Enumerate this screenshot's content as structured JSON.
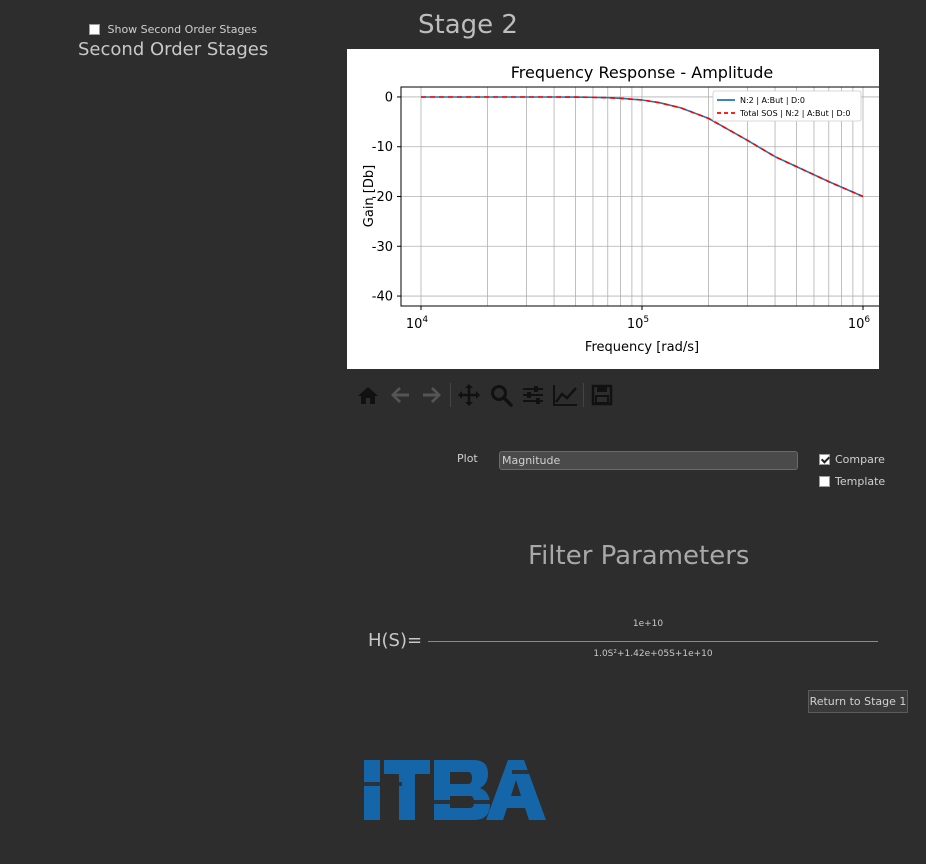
{
  "sidebar": {
    "show_sos_label": "Show Second Order Stages",
    "show_sos_checked": false,
    "title": "Second Order Stages"
  },
  "stage_title": "Stage 2",
  "toolbar": {
    "icons": [
      "home-icon",
      "back-arrow-icon",
      "forward-arrow-icon",
      "pan-icon",
      "zoom-icon",
      "configure-subplots-icon",
      "edit-axis-icon",
      "save-icon"
    ]
  },
  "controls": {
    "plot_label": "Plot",
    "plot_value": "Magnitude",
    "compare_label": "Compare",
    "compare_checked": true,
    "template_label": "Template",
    "template_checked": false
  },
  "params": {
    "title": "Filter Parameters",
    "hs_label": "H(S)=",
    "numerator": "1e+10",
    "denominator": "1.0S²+1.42e+05S+1e+10"
  },
  "return_button": "Return to Stage 1",
  "logo_text": "ITBA",
  "colors": {
    "background": "#2d2d2d",
    "series1": "#1f77b4",
    "series2": "#ff0000",
    "logo": "#1466a8"
  },
  "chart_data": {
    "type": "line",
    "title": "Frequency Response - Amplitude",
    "xlabel": "Frequency [rad/s]",
    "ylabel": "Gain [Db]",
    "xscale": "log",
    "xlim": [
      10000,
      1000000
    ],
    "ylim": [
      -42,
      2
    ],
    "xticks": [
      10000,
      100000,
      1000000
    ],
    "xtick_labels": [
      [
        "10",
        "4"
      ],
      [
        "10",
        "5"
      ],
      [
        "10",
        "6"
      ]
    ],
    "yticks": [
      0,
      -10,
      -20,
      -30,
      -40
    ],
    "grid": true,
    "legend_position": "upper right",
    "series": [
      {
        "name": "N:2 | A:But | D:0",
        "color": "#1f77b4",
        "style": "solid",
        "x": [
          10000,
          20000,
          30000,
          40000,
          50000,
          60000,
          70000,
          80000,
          100000,
          120000,
          150000,
          200000,
          300000,
          400000,
          500000,
          700000,
          1000000
        ],
        "y": [
          0,
          0,
          -0.003,
          -0.011,
          -0.03,
          -0.07,
          -0.14,
          -0.27,
          -0.62,
          -1.16,
          -2.2,
          -4.3,
          -8.7,
          -12.0,
          -14.0,
          -17.0,
          -20.0
        ]
      },
      {
        "name": "Total SOS | N:2 | A:But | D:0",
        "color": "#ff0000",
        "style": "dashed",
        "x": [
          10000,
          20000,
          30000,
          40000,
          50000,
          60000,
          70000,
          80000,
          100000,
          120000,
          150000,
          200000,
          300000,
          400000,
          500000,
          700000,
          1000000
        ],
        "y": [
          0,
          0,
          -0.003,
          -0.011,
          -0.03,
          -0.07,
          -0.14,
          -0.27,
          -0.62,
          -1.16,
          -2.2,
          -4.3,
          -8.7,
          -12.0,
          -14.0,
          -17.0,
          -20.0
        ]
      }
    ]
  }
}
